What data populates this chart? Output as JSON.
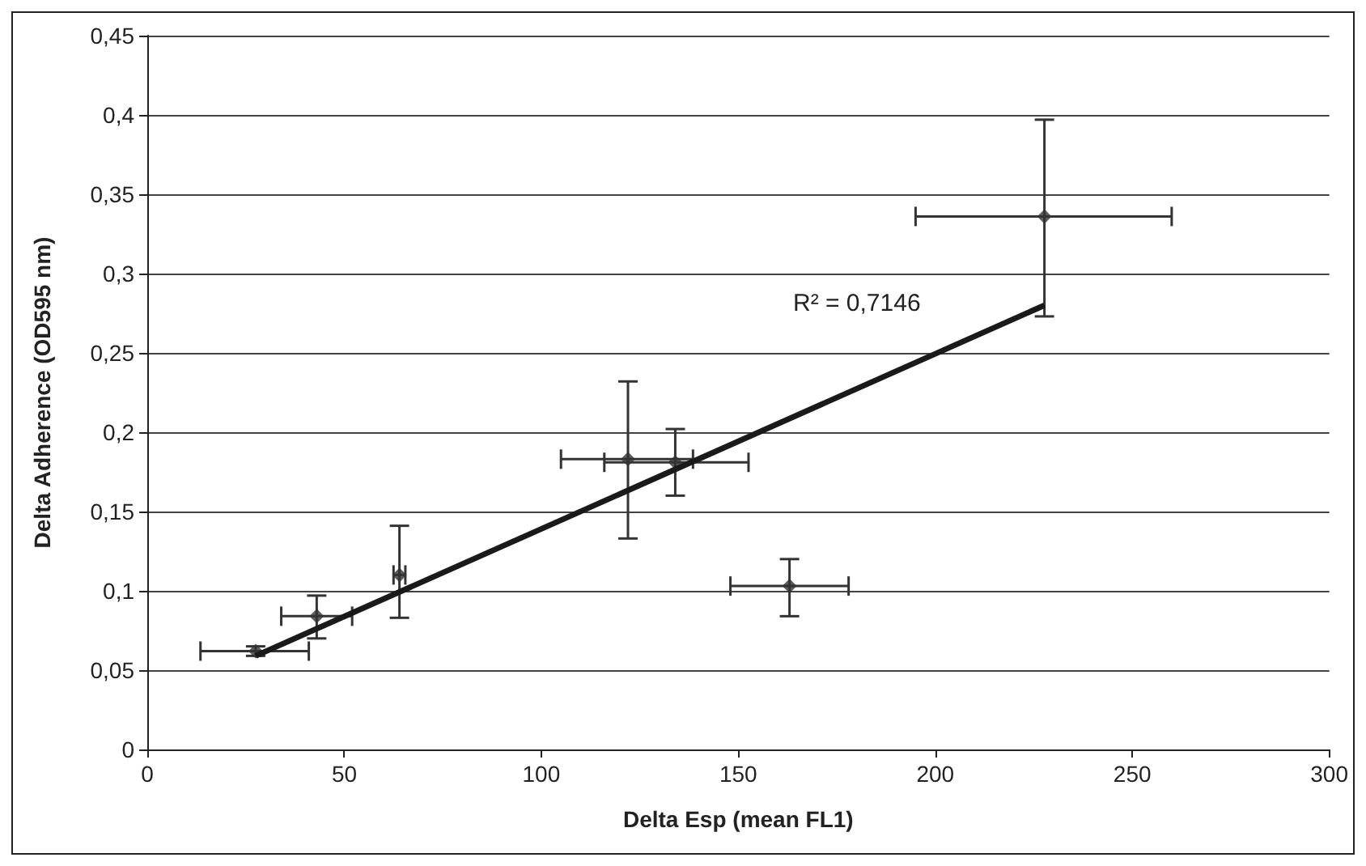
{
  "chart_data": {
    "type": "scatter",
    "xlabel": "Delta Esp (mean FL1)",
    "ylabel": "Delta Adherence (OD595 nm)",
    "x": [
      27.5,
      43,
      64,
      122,
      134,
      163,
      227.7
    ],
    "series": [
      {
        "color": "#333333",
        "values": [
          0.062,
          0.084,
          0.11,
          0.183,
          0.181,
          0.103,
          0.336
        ],
        "errors": [
          0.003,
          [
            0.07,
            0.097
          ],
          [
            0.083,
            0.141
          ],
          [
            0.133,
            0.232
          ],
          [
            0.16,
            0.202
          ],
          [
            0.084,
            0.12
          ],
          [
            0.273,
            0.397
          ]
        ],
        "xerrors": [
          [
            13.5,
            41
          ],
          [
            34,
            52
          ],
          [
            62.5,
            65.5
          ],
          [
            105,
            138.5
          ],
          [
            116,
            152.6
          ],
          [
            148,
            178
          ],
          [
            195,
            260
          ]
        ]
      },
      {
        "type": "line",
        "color": "#1a1a1a",
        "x": [
          27.5,
          227.7
        ],
        "values": [
          0.059,
          0.28
        ],
        "marker": "none"
      }
    ],
    "marker": "diamond",
    "annotations": [
      "R² = 0,7146"
    ],
    "xlim": [
      0,
      300
    ],
    "xticks": [
      0,
      50,
      100,
      150,
      200,
      250,
      300
    ],
    "ylim": [
      0,
      0.45
    ],
    "yticks": [
      0,
      {
        "value": 0.05,
        "label": "0,05"
      },
      {
        "value": 0.1,
        "label": "0,1"
      },
      {
        "value": 0.15,
        "label": "0,15"
      },
      {
        "value": 0.2,
        "label": "0,2"
      },
      {
        "value": 0.25,
        "label": "0,25"
      },
      {
        "value": 0.3,
        "label": "0,3"
      },
      {
        "value": 0.35,
        "label": "0,35"
      },
      {
        "value": 0.4,
        "label": "0,4"
      },
      {
        "value": 0.45,
        "label": "0,45"
      }
    ],
    "grid": "y"
  }
}
